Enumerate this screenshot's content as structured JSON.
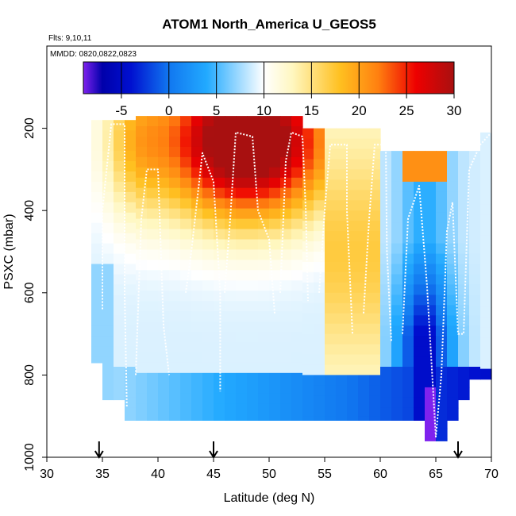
{
  "chart_data": {
    "type": "heatmap",
    "title": "ATOM1 North_America U_GEOS5",
    "annotations": [
      "Flts: 9,10,11",
      "MMDD: 0820,0822,0823"
    ],
    "xlabel": "Latitude (deg N)",
    "ylabel": "PSXC (mbar)",
    "xlim": [
      30,
      70
    ],
    "ylim": [
      1000,
      0
    ],
    "xticks": [
      "30",
      "35",
      "40",
      "45",
      "50",
      "55",
      "60",
      "65",
      "70"
    ],
    "yticks": [
      "200",
      "400",
      "600",
      "800",
      "1000"
    ],
    "colorbar": {
      "range": [
        -9,
        30
      ],
      "ticks": [
        "-5",
        "0",
        "5",
        "10",
        "15",
        "20",
        "25",
        "30"
      ],
      "stops": [
        {
          "v": -9,
          "color": "#7f22ee"
        },
        {
          "v": -7,
          "color": "#0000aa"
        },
        {
          "v": -4,
          "color": "#0010d0"
        },
        {
          "v": 0,
          "color": "#1177f0"
        },
        {
          "v": 4,
          "color": "#22aaff"
        },
        {
          "v": 10,
          "color": "#ffffff"
        },
        {
          "v": 13,
          "color": "#fff7c0"
        },
        {
          "v": 18,
          "color": "#ffc020"
        },
        {
          "v": 22,
          "color": "#ff8010"
        },
        {
          "v": 26,
          "color": "#ee0000"
        },
        {
          "v": 30,
          "color": "#a81010"
        }
      ]
    },
    "flight_markers": [
      34.7,
      45,
      67
    ],
    "profile_paths": [
      [
        [
          35,
          640
        ],
        [
          35,
          400
        ],
        [
          35.8,
          190
        ],
        [
          37,
          190
        ],
        [
          37,
          600
        ],
        [
          37.2,
          880
        ]
      ],
      [
        [
          38,
          800
        ],
        [
          38.5,
          420
        ],
        [
          39,
          300
        ],
        [
          40,
          300
        ],
        [
          40.5,
          680
        ],
        [
          41,
          800
        ]
      ],
      [
        [
          42.5,
          600
        ],
        [
          43,
          500
        ],
        [
          44,
          260
        ],
        [
          45,
          330
        ],
        [
          45.6,
          600
        ],
        [
          45.6,
          840
        ]
      ],
      [
        [
          46,
          600
        ],
        [
          46.5,
          420
        ],
        [
          47,
          210
        ],
        [
          48.5,
          220
        ],
        [
          49,
          400
        ],
        [
          50,
          470
        ],
        [
          50.5,
          650
        ]
      ],
      [
        [
          51,
          600
        ],
        [
          51.5,
          280
        ],
        [
          52,
          210
        ],
        [
          53,
          220
        ],
        [
          53.3,
          400
        ],
        [
          53.5,
          620
        ]
      ],
      [
        [
          54.5,
          600
        ],
        [
          55,
          400
        ],
        [
          55.5,
          240
        ],
        [
          57,
          240
        ],
        [
          57,
          400
        ],
        [
          57.5,
          700
        ]
      ],
      [
        [
          58.5,
          650
        ],
        [
          59,
          420
        ],
        [
          59.5,
          240
        ],
        [
          60.5,
          240
        ],
        [
          60.6,
          500
        ],
        [
          61,
          720
        ]
      ],
      [
        [
          62,
          700
        ],
        [
          62.5,
          420
        ],
        [
          63.5,
          340
        ],
        [
          64.2,
          580
        ],
        [
          65,
          950
        ],
        [
          65.5,
          800
        ],
        [
          66,
          450
        ],
        [
          66.5,
          380
        ],
        [
          67,
          700
        ],
        [
          67.5,
          700
        ],
        [
          68,
          300
        ],
        [
          69,
          240
        ],
        [
          70,
          210
        ]
      ]
    ],
    "grid": false,
    "legend": "colorbar-top"
  }
}
